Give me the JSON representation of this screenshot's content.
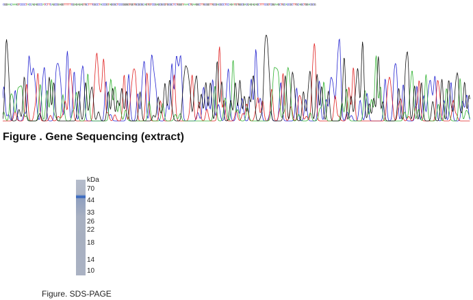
{
  "sequencing": {
    "caption": "Figure . Gene Sequencing (extract)",
    "base_colors": {
      "A": "#2fb12f",
      "C": "#2424d0",
      "G": "#111111",
      "T": "#e02020"
    },
    "sequence_text": "CGGAACAAAGTCCCCTACCAGAGCCCATCTTCAGCCGAGGTTTTTCGAGAGAGTGCTTTCGCCTACCCGTAGCGCTCCCGGGGTGGTGCGCGCAGTGTCCGAGCGCGTGCGCTCTGGGTAAACTGAAGGCTTGCGGTTGCGACGCCTCCAGATGTGGCGACGAGAGAGCTTTCCGTCGGAAGCTGCACCGCTTGCAGCTGGACGCG"
  },
  "sds_page": {
    "caption": "Figure. SDS-PAGE",
    "unit_label": "kDa",
    "markers": [
      "70",
      "44",
      "33",
      "26",
      "22",
      "18",
      "14",
      "10"
    ],
    "band_marker": "44",
    "lane_color": "#a9b1c2",
    "band_color": "#3a6cc4"
  }
}
